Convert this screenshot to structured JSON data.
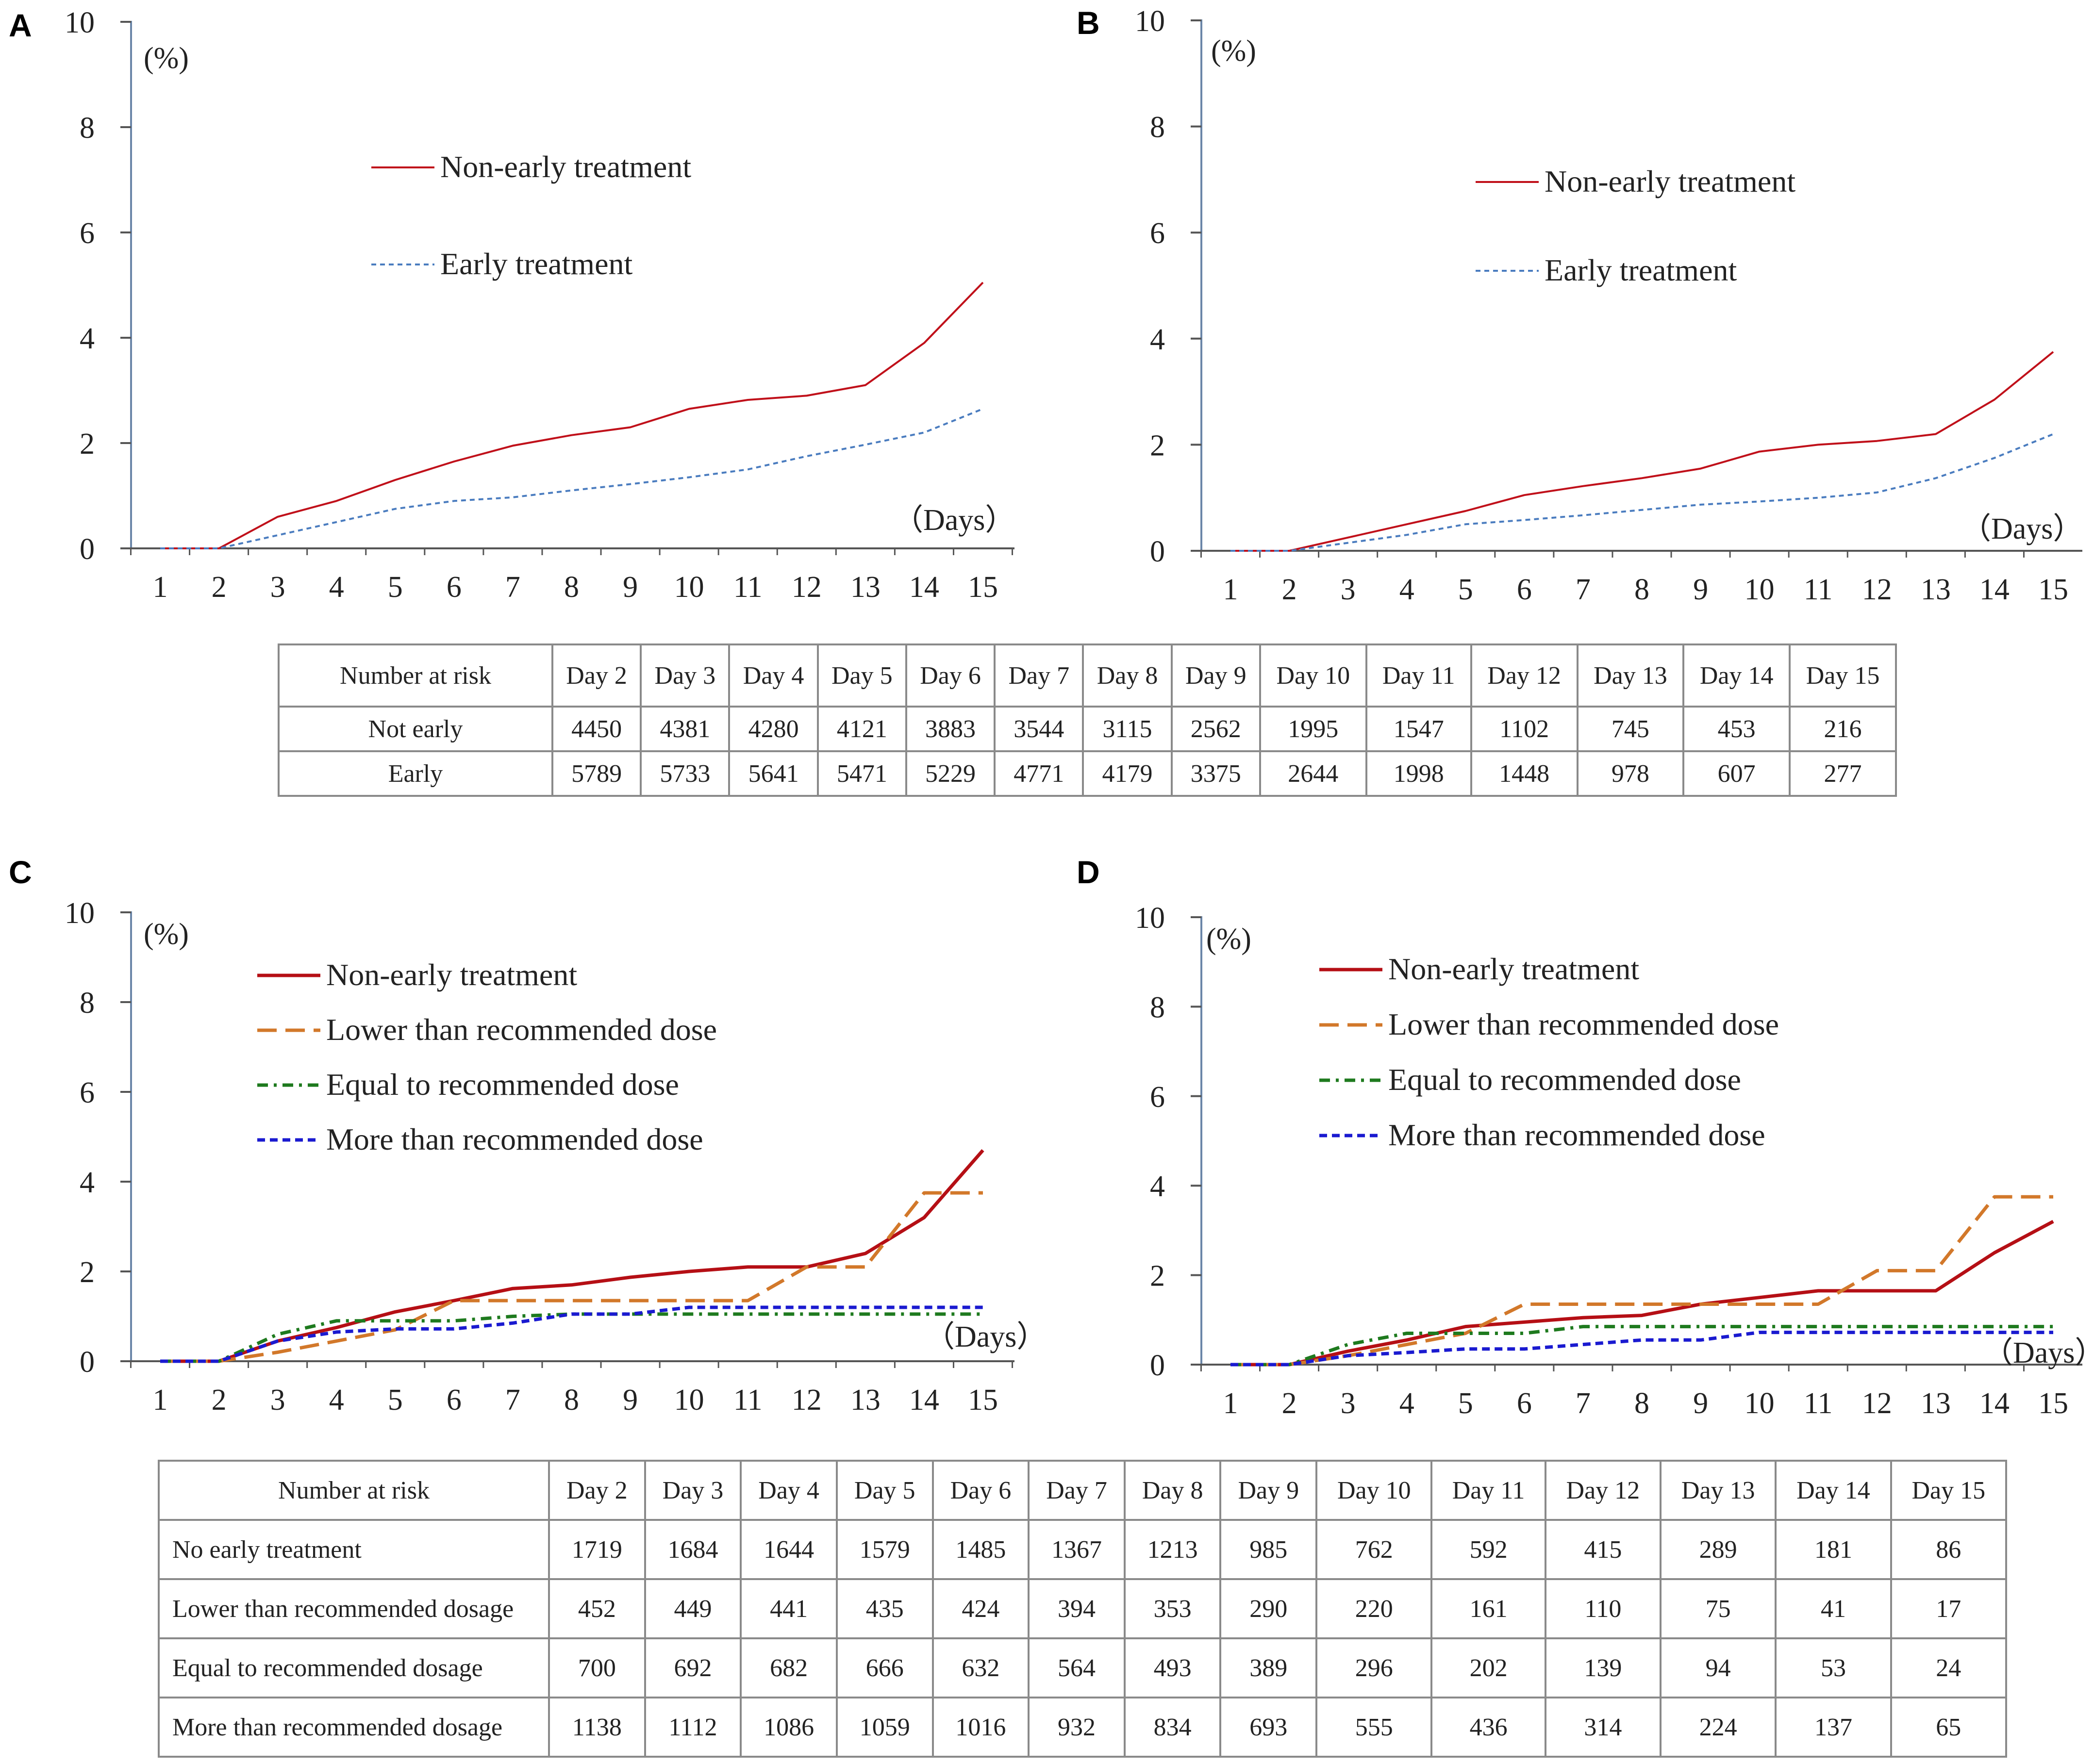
{
  "panels": [
    {
      "letter": "A",
      "y_unit": "(%)",
      "x_unit": "（Days）",
      "legend": [
        {
          "label": "Non-early treatment",
          "color": "#c0101a",
          "dash": "solid"
        },
        {
          "label": "Early treatment",
          "color": "#4a7cbf",
          "dash": "dotted"
        }
      ]
    },
    {
      "letter": "B",
      "y_unit": "(%)",
      "x_unit": "（Days）",
      "legend": [
        {
          "label": "Non-early treatment",
          "color": "#c0101a",
          "dash": "solid"
        },
        {
          "label": "Early treatment",
          "color": "#4a7cbf",
          "dash": "dotted"
        }
      ]
    },
    {
      "letter": "C",
      "y_unit": "(%)",
      "x_unit": "（Days）",
      "legend": [
        {
          "label": "Non-early treatment",
          "color": "#b50f15",
          "dash": "solid"
        },
        {
          "label": "Lower than recommended dose",
          "color": "#d2782a",
          "dash": "longdash"
        },
        {
          "label": "Equal to recommended dose",
          "color": "#1e7a1e",
          "dash": "dashdot"
        },
        {
          "label": "More than recommended dose",
          "color": "#1a1ad0",
          "dash": "shortdash"
        }
      ]
    },
    {
      "letter": "D",
      "y_unit": "(%)",
      "x_unit": "（Days）",
      "legend": [
        {
          "label": "Non-early treatment",
          "color": "#b50f15",
          "dash": "solid"
        },
        {
          "label": "Lower than recommended dose",
          "color": "#d2782a",
          "dash": "longdash"
        },
        {
          "label": "Equal to recommended dose",
          "color": "#1e7a1e",
          "dash": "dashdot"
        },
        {
          "label": "More than recommended dose",
          "color": "#1a1ad0",
          "dash": "shortdash"
        }
      ]
    }
  ],
  "chart_data": [
    {
      "type": "line",
      "panel": "A",
      "x": [
        1,
        2,
        3,
        4,
        5,
        6,
        7,
        8,
        9,
        10,
        11,
        12,
        13,
        14,
        15
      ],
      "xlim": [
        1,
        15
      ],
      "ylim": [
        0,
        10
      ],
      "yticks": [
        0,
        2,
        4,
        6,
        8,
        10
      ],
      "ylabel": "(%)",
      "xlabel": "（Days）",
      "series": [
        {
          "name": "Non-early treatment",
          "values": [
            0,
            0,
            0.6,
            0.9,
            1.3,
            1.65,
            1.95,
            2.15,
            2.3,
            2.65,
            2.82,
            2.9,
            3.1,
            3.9,
            5.05
          ]
        },
        {
          "name": "Early treatment",
          "values": [
            0,
            0,
            0.25,
            0.5,
            0.75,
            0.9,
            0.97,
            1.1,
            1.22,
            1.35,
            1.5,
            1.75,
            1.97,
            2.2,
            2.65
          ]
        }
      ]
    },
    {
      "type": "line",
      "panel": "B",
      "x": [
        1,
        2,
        3,
        4,
        5,
        6,
        7,
        8,
        9,
        10,
        11,
        12,
        13,
        14,
        15
      ],
      "xlim": [
        1,
        15
      ],
      "ylim": [
        0,
        10
      ],
      "yticks": [
        0,
        2,
        4,
        6,
        8,
        10
      ],
      "ylabel": "(%)",
      "xlabel": "（Days）",
      "series": [
        {
          "name": "Non-early treatment",
          "values": [
            0,
            0,
            0.25,
            0.5,
            0.75,
            1.05,
            1.22,
            1.37,
            1.55,
            1.87,
            2.0,
            2.07,
            2.2,
            2.85,
            3.75
          ]
        },
        {
          "name": "Early treatment",
          "values": [
            0,
            0,
            0.15,
            0.3,
            0.5,
            0.58,
            0.67,
            0.77,
            0.87,
            0.93,
            1.0,
            1.1,
            1.37,
            1.75,
            2.2
          ]
        }
      ]
    },
    {
      "type": "line",
      "panel": "C",
      "x": [
        1,
        2,
        3,
        4,
        5,
        6,
        7,
        8,
        9,
        10,
        11,
        12,
        13,
        14,
        15
      ],
      "xlim": [
        1,
        15
      ],
      "ylim": [
        0,
        10
      ],
      "yticks": [
        0,
        2,
        4,
        6,
        8,
        10
      ],
      "ylabel": "(%)",
      "xlabel": "（Days）",
      "series": [
        {
          "name": "Non-early treatment",
          "values": [
            0,
            0,
            0.45,
            0.75,
            1.1,
            1.35,
            1.62,
            1.7,
            1.87,
            2.0,
            2.1,
            2.1,
            2.4,
            3.2,
            4.7
          ]
        },
        {
          "name": "Lower than recommended dose",
          "values": [
            0,
            0,
            0.2,
            0.45,
            0.7,
            1.35,
            1.35,
            1.35,
            1.35,
            1.35,
            1.35,
            2.1,
            2.1,
            3.75,
            3.75
          ]
        },
        {
          "name": "Equal to recommended dose",
          "values": [
            0,
            0,
            0.6,
            0.9,
            0.9,
            0.9,
            1.0,
            1.05,
            1.05,
            1.05,
            1.05,
            1.05,
            1.05,
            1.05,
            1.05
          ]
        },
        {
          "name": "More than recommended dose",
          "values": [
            0,
            0,
            0.45,
            0.65,
            0.72,
            0.72,
            0.85,
            1.05,
            1.05,
            1.2,
            1.2,
            1.2,
            1.2,
            1.2,
            1.2
          ]
        }
      ]
    },
    {
      "type": "line",
      "panel": "D",
      "x": [
        1,
        2,
        3,
        4,
        5,
        6,
        7,
        8,
        9,
        10,
        11,
        12,
        13,
        14,
        15
      ],
      "xlim": [
        1,
        15
      ],
      "ylim": [
        0,
        10
      ],
      "yticks": [
        0,
        2,
        4,
        6,
        8,
        10
      ],
      "ylabel": "(%)",
      "xlabel": "（Days）",
      "series": [
        {
          "name": "Non-early treatment",
          "values": [
            0,
            0,
            0.3,
            0.55,
            0.85,
            0.95,
            1.05,
            1.1,
            1.35,
            1.5,
            1.65,
            1.65,
            1.65,
            2.5,
            3.2
          ]
        },
        {
          "name": "Lower than recommended dose",
          "values": [
            0,
            0,
            0.2,
            0.45,
            0.7,
            1.35,
            1.35,
            1.35,
            1.35,
            1.35,
            1.35,
            2.1,
            2.1,
            3.75,
            3.75
          ]
        },
        {
          "name": "Equal to recommended dose",
          "values": [
            0,
            0,
            0.45,
            0.7,
            0.7,
            0.7,
            0.85,
            0.85,
            0.85,
            0.85,
            0.85,
            0.85,
            0.85,
            0.85,
            0.85
          ]
        },
        {
          "name": "More than recommended dose",
          "values": [
            0,
            0,
            0.2,
            0.27,
            0.35,
            0.35,
            0.45,
            0.55,
            0.55,
            0.72,
            0.72,
            0.72,
            0.72,
            0.72,
            0.72
          ]
        }
      ]
    }
  ],
  "tables": {
    "ab": {
      "header": [
        "Number at risk",
        "Day 2",
        "Day 3",
        "Day 4",
        "Day 5",
        "Day 6",
        "Day 7",
        "Day 8",
        "Day 9",
        "Day 10",
        "Day 11",
        "Day 12",
        "Day 13",
        "Day 14",
        "Day 15"
      ],
      "rows": [
        [
          "Not early",
          "4450",
          "4381",
          "4280",
          "4121",
          "3883",
          "3544",
          "3115",
          "2562",
          "1995",
          "1547",
          "1102",
          "745",
          "453",
          "216"
        ],
        [
          "Early",
          "5789",
          "5733",
          "5641",
          "5471",
          "5229",
          "4771",
          "4179",
          "3375",
          "2644",
          "1998",
          "1448",
          "978",
          "607",
          "277"
        ]
      ]
    },
    "cd": {
      "header": [
        "Number at risk",
        "Day 2",
        "Day 3",
        "Day 4",
        "Day 5",
        "Day 6",
        "Day 7",
        "Day 8",
        "Day 9",
        "Day 10",
        "Day 11",
        "Day 12",
        "Day 13",
        "Day 14",
        "Day 15"
      ],
      "rows": [
        [
          "No early treatment",
          "1719",
          "1684",
          "1644",
          "1579",
          "1485",
          "1367",
          "1213",
          "985",
          "762",
          "592",
          "415",
          "289",
          "181",
          "86"
        ],
        [
          "Lower than recommended dosage",
          "452",
          "449",
          "441",
          "435",
          "424",
          "394",
          "353",
          "290",
          "220",
          "161",
          "110",
          "75",
          "41",
          "17"
        ],
        [
          "Equal to recommended dosage",
          "700",
          "692",
          "682",
          "666",
          "632",
          "564",
          "493",
          "389",
          "296",
          "202",
          "139",
          "94",
          "53",
          "24"
        ],
        [
          "More than recommended dosage",
          "1138",
          "1112",
          "1086",
          "1059",
          "1016",
          "932",
          "834",
          "693",
          "555",
          "436",
          "314",
          "224",
          "137",
          "65"
        ]
      ]
    }
  }
}
